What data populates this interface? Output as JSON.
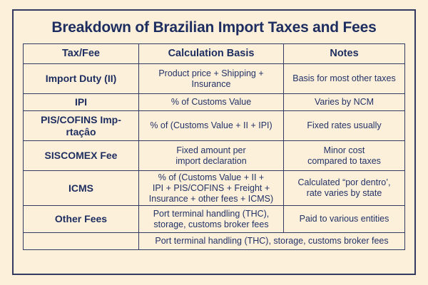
{
  "title": "Breakdown of Brazilian Import Taxes and Fees",
  "colors": {
    "background": "#fcf0db",
    "ink_navy": "#1d2d5f",
    "border_navy": "#333a60"
  },
  "chart_data": {
    "type": "table",
    "title": "Breakdown of Brazilian Import Taxes and Fees",
    "columns": [
      "Tax/Fee",
      "Calculation Basis",
      "Notes"
    ],
    "rows": [
      [
        "Import Duty (II)",
        "Product price + Shipping +\nInsurance",
        "Basis for most other taxes"
      ],
      [
        "IPI",
        "% of Customs Value",
        "Varies by NCM"
      ],
      [
        "PIS/COFINS Imp-\nrtaçâo",
        "% of (Customs Value + II + IPI)",
        "Fixed rates usually"
      ],
      [
        "SISCOMEX Fee",
        "Fixed amount per\nimport declaration",
        "Minor cost\ncompared to taxes"
      ],
      [
        "ICMS",
        "% of (Customs Value + II +\nIPI + PIS/COFINS + Freight +\nInsurance + other fees + ICMS)",
        "Calculated “por dentro’,\nrate varies by state"
      ],
      [
        "Other Fees",
        "Port terminal handling (THC),\nstorage, customs broker fees",
        "Paid to various entities"
      ],
      [
        "",
        "Port terminal handling (THC), storage, customs broker fees",
        ""
      ]
    ],
    "layout": {
      "merged_last_row": "columns 2-3 merged, first cell empty",
      "grid": "all cells bordered, navy on cream"
    }
  }
}
